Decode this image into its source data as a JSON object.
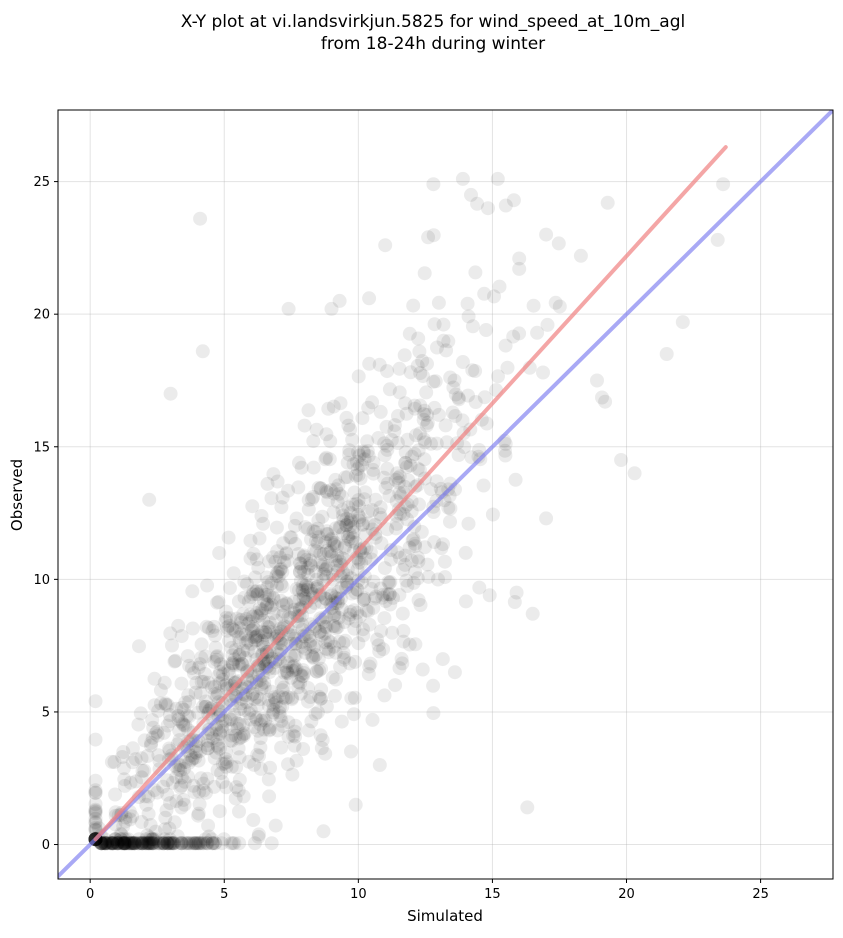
{
  "chart_data": {
    "type": "scatter",
    "title": "X-Y plot at vi.landsvirkjun.5825 for wind_speed_at_10m_agl",
    "subtitle": "from 18-24h during winter",
    "xlabel": "Simulated",
    "ylabel": "Observed",
    "xlim": [
      -1.2,
      27.7
    ],
    "ylim": [
      -1.3,
      27.7
    ],
    "xticks": [
      "0",
      "5",
      "10",
      "15",
      "20",
      "25"
    ],
    "yticks": [
      "0",
      "5",
      "10",
      "15",
      "20",
      "25"
    ],
    "grid": true,
    "legend": "none",
    "marker_color": "#000000",
    "marker_opacity": 0.08,
    "fit_line": {
      "color": "#f08080",
      "x": [
        0.2,
        23.7
      ],
      "y": [
        0.2,
        26.3
      ]
    },
    "identity_line": {
      "color": "#7b7bf0",
      "x": [
        -1.2,
        27.7
      ],
      "y": [
        -1.2,
        27.7
      ]
    },
    "n_points": 1500,
    "outliers": [
      {
        "x": 4.1,
        "y": 23.6
      },
      {
        "x": 4.2,
        "y": 18.6
      },
      {
        "x": 3.0,
        "y": 17.0
      },
      {
        "x": 2.2,
        "y": 13.0
      },
      {
        "x": 7.4,
        "y": 20.2
      },
      {
        "x": 12.8,
        "y": 24.9
      },
      {
        "x": 13.9,
        "y": 25.1
      },
      {
        "x": 15.2,
        "y": 25.1
      },
      {
        "x": 14.2,
        "y": 24.5
      },
      {
        "x": 15.5,
        "y": 24.1
      },
      {
        "x": 15.8,
        "y": 24.3
      },
      {
        "x": 17.0,
        "y": 23.0
      },
      {
        "x": 19.3,
        "y": 24.2
      },
      {
        "x": 23.6,
        "y": 24.9
      },
      {
        "x": 23.4,
        "y": 22.8
      },
      {
        "x": 22.1,
        "y": 19.7
      },
      {
        "x": 21.5,
        "y": 18.5
      },
      {
        "x": 20.3,
        "y": 14.0
      },
      {
        "x": 19.8,
        "y": 14.5
      },
      {
        "x": 16.3,
        "y": 1.4
      },
      {
        "x": 16.5,
        "y": 8.7
      },
      {
        "x": 15.9,
        "y": 9.5
      },
      {
        "x": 17.0,
        "y": 12.3
      },
      {
        "x": 11.0,
        "y": 22.6
      },
      {
        "x": 12.6,
        "y": 22.9
      },
      {
        "x": 9.0,
        "y": 20.2
      },
      {
        "x": 9.3,
        "y": 20.5
      },
      {
        "x": 10.4,
        "y": 20.6
      },
      {
        "x": 16.0,
        "y": 22.1
      },
      {
        "x": 18.3,
        "y": 22.2
      },
      {
        "x": 18.9,
        "y": 17.5
      },
      {
        "x": 19.2,
        "y": 16.7
      },
      {
        "x": 9.9,
        "y": 1.5
      },
      {
        "x": 10.8,
        "y": 3.0
      },
      {
        "x": 8.7,
        "y": 0.5
      },
      {
        "x": 13.6,
        "y": 6.5
      },
      {
        "x": 14.9,
        "y": 9.4
      },
      {
        "x": 12.4,
        "y": 6.6
      }
    ]
  }
}
